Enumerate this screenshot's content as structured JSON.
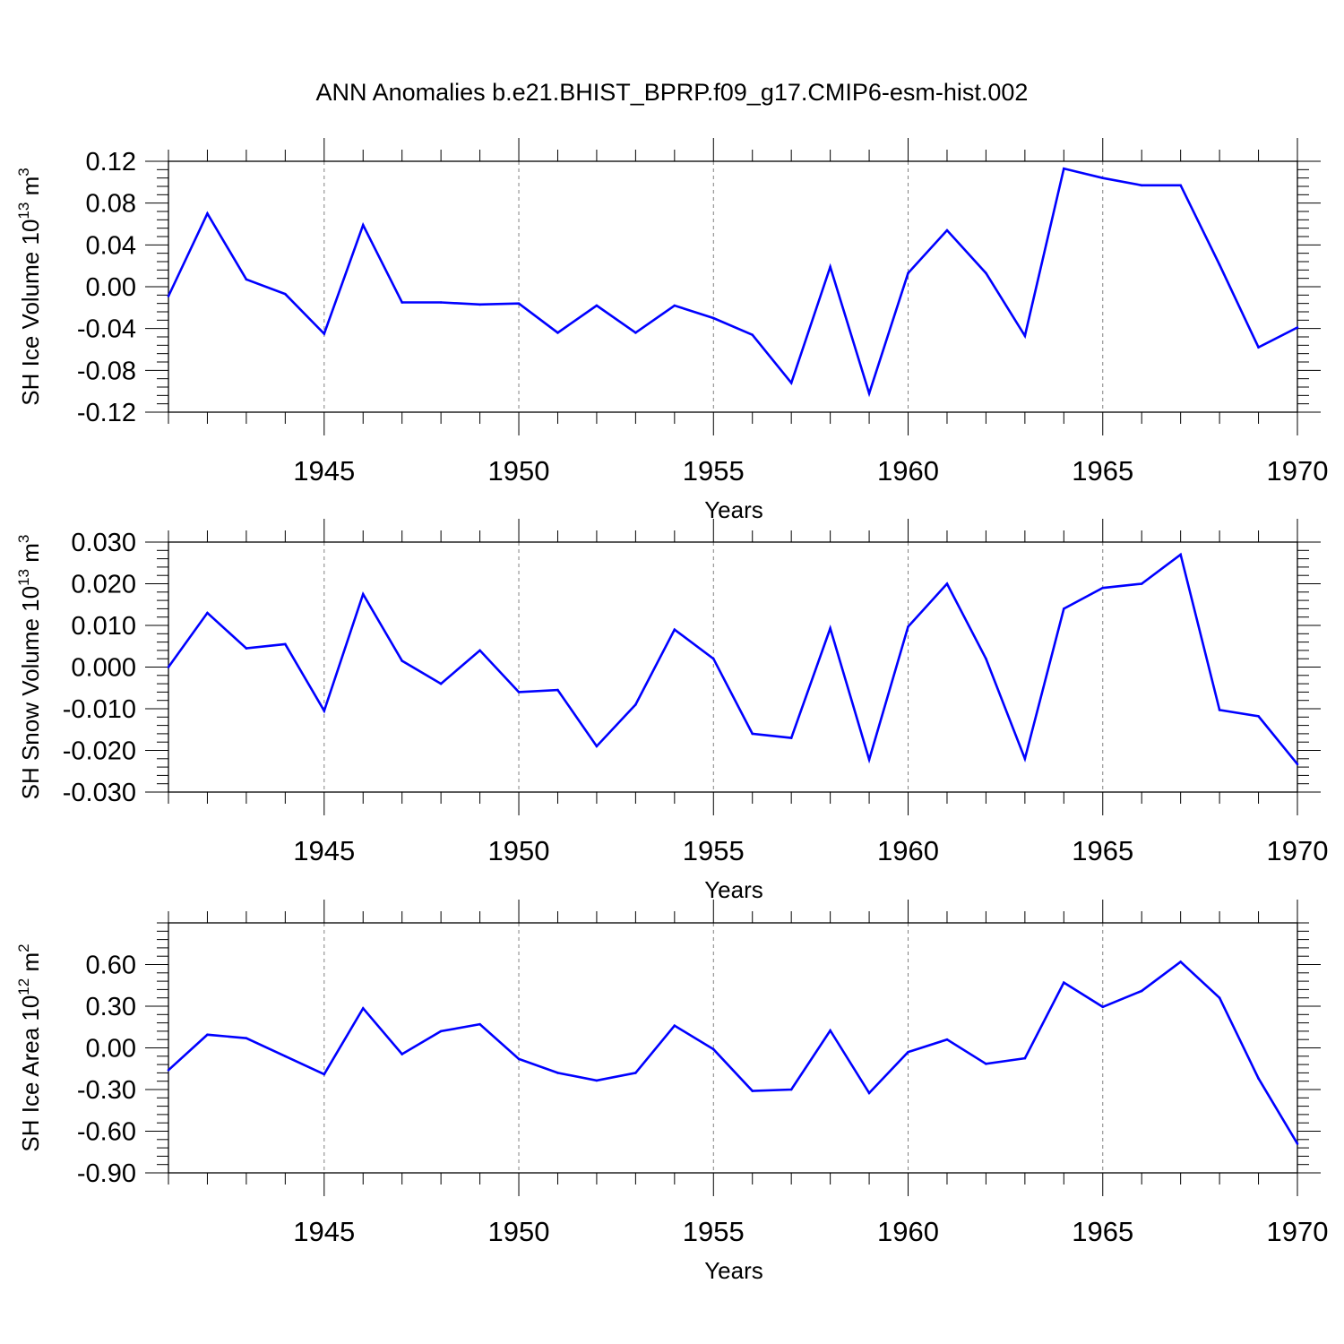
{
  "title": "ANN Anomalies b.e21.BHIST_BPRP.f09_g17.CMIP6-esm-hist.002",
  "colors": {
    "line": "#0000ff",
    "axis": "#000000",
    "grid": "#808080"
  },
  "chart_data": [
    {
      "type": "line",
      "ylabel": "SH Ice Volume 10",
      "ylabel_exp": "13",
      "ylabel_unit": " m",
      "ylabel_unit_exp": "3",
      "xlabel": "Years",
      "xlim": [
        1941,
        1970
      ],
      "ylim": [
        -0.12,
        0.12
      ],
      "yticks": [
        -0.12,
        -0.08,
        -0.04,
        0.0,
        0.04,
        0.08,
        0.12
      ],
      "ytick_labels": [
        "-0.12",
        "-0.08",
        "-0.04",
        "0.00",
        "0.04",
        "0.08",
        "0.12"
      ],
      "xticks": [
        1945,
        1950,
        1955,
        1960,
        1965,
        1970
      ],
      "xtick_labels": [
        "1945",
        "1950",
        "1955",
        "1960",
        "1965",
        "1970"
      ],
      "grid": "dashed vertical at major x ticks",
      "x": [
        1941,
        1942,
        1943,
        1944,
        1945,
        1946,
        1947,
        1948,
        1949,
        1950,
        1951,
        1952,
        1953,
        1954,
        1955,
        1956,
        1957,
        1958,
        1959,
        1960,
        1961,
        1962,
        1963,
        1964,
        1965,
        1966,
        1967,
        1968,
        1969,
        1970
      ],
      "series": [
        {
          "values": [
            -0.009,
            0.07,
            0.007,
            -0.007,
            -0.045,
            0.059,
            -0.015,
            -0.015,
            -0.017,
            -0.016,
            -0.044,
            -0.018,
            -0.044,
            -0.018,
            -0.03,
            -0.046,
            -0.092,
            0.019,
            -0.102,
            0.013,
            0.054,
            0.013,
            -0.047,
            0.113,
            0.104,
            0.097,
            0.097,
            0.021,
            -0.058,
            -0.039
          ]
        }
      ]
    },
    {
      "type": "line",
      "ylabel": "SH Snow Volume 10",
      "ylabel_exp": "13",
      "ylabel_unit": " m",
      "ylabel_unit_exp": "3",
      "xlabel": "Years",
      "xlim": [
        1941,
        1970
      ],
      "ylim": [
        -0.03,
        0.03
      ],
      "yticks": [
        -0.03,
        -0.02,
        -0.01,
        0.0,
        0.01,
        0.02,
        0.03
      ],
      "ytick_labels": [
        "-0.030",
        "-0.020",
        "-0.010",
        "0.000",
        "0.010",
        "0.020",
        "0.030"
      ],
      "xticks": [
        1945,
        1950,
        1955,
        1960,
        1965,
        1970
      ],
      "xtick_labels": [
        "1945",
        "1950",
        "1955",
        "1960",
        "1965",
        "1970"
      ],
      "grid": "dashed vertical at major x ticks",
      "x": [
        1941,
        1942,
        1943,
        1944,
        1945,
        1946,
        1947,
        1948,
        1949,
        1950,
        1951,
        1952,
        1953,
        1954,
        1955,
        1956,
        1957,
        1958,
        1959,
        1960,
        1961,
        1962,
        1963,
        1964,
        1965,
        1966,
        1967,
        1968,
        1969,
        1970
      ],
      "series": [
        {
          "values": [
            0.0,
            0.013,
            0.0045,
            0.0055,
            -0.0105,
            0.0175,
            0.0015,
            -0.004,
            0.004,
            -0.006,
            -0.0055,
            -0.019,
            -0.009,
            0.009,
            0.002,
            -0.016,
            -0.017,
            0.0093,
            -0.0222,
            0.0097,
            0.02,
            0.002,
            -0.022,
            0.014,
            0.019,
            0.02,
            0.027,
            -0.0103,
            -0.0118,
            -0.0233
          ]
        }
      ]
    },
    {
      "type": "line",
      "ylabel": "SH Ice Area 10",
      "ylabel_exp": "12",
      "ylabel_unit": " m",
      "ylabel_unit_exp": "2",
      "xlabel": "Years",
      "xlim": [
        1941,
        1970
      ],
      "ylim": [
        -0.9,
        0.9
      ],
      "yticks": [
        -0.9,
        -0.6,
        -0.3,
        0.0,
        0.3,
        0.6
      ],
      "ytick_labels": [
        "-0.90",
        "-0.60",
        "-0.30",
        "0.00",
        "0.30",
        "0.60"
      ],
      "xticks": [
        1945,
        1950,
        1955,
        1960,
        1965,
        1970
      ],
      "xtick_labels": [
        "1945",
        "1950",
        "1955",
        "1960",
        "1965",
        "1970"
      ],
      "grid": "dashed vertical at major x ticks",
      "x": [
        1941,
        1942,
        1943,
        1944,
        1945,
        1946,
        1947,
        1948,
        1949,
        1950,
        1951,
        1952,
        1953,
        1954,
        1955,
        1956,
        1957,
        1958,
        1959,
        1960,
        1961,
        1962,
        1963,
        1964,
        1965,
        1966,
        1967,
        1968,
        1969,
        1970
      ],
      "series": [
        {
          "values": [
            -0.16,
            0.095,
            0.07,
            -0.06,
            -0.19,
            0.285,
            -0.045,
            0.12,
            0.17,
            -0.08,
            -0.18,
            -0.235,
            -0.18,
            0.16,
            -0.01,
            -0.31,
            -0.3,
            0.125,
            -0.325,
            -0.03,
            0.06,
            -0.115,
            -0.075,
            0.47,
            0.295,
            0.41,
            0.62,
            0.36,
            -0.22,
            -0.69
          ]
        }
      ]
    }
  ]
}
